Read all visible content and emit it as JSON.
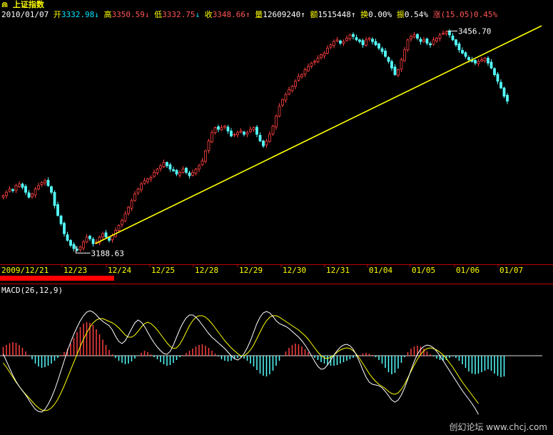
{
  "header": {
    "title": "上证指数",
    "date": "2010/01/07",
    "open_label": "开",
    "open": "3332.98",
    "high_label": "高",
    "high": "3350.59",
    "low_label": "低",
    "low": "3332.75",
    "close_label": "收",
    "close": "3348.66",
    "volume_label": "量",
    "volume": "12609240",
    "amount_label": "额",
    "amount": "1515448",
    "turnover_label": "换",
    "turnover": "0.00%",
    "amplitude_label": "振",
    "amplitude": "0.54%",
    "change_label": "涨",
    "change": "(15.05)0.45%"
  },
  "colors": {
    "up": "#ff4040",
    "down": "#54ffff",
    "trend": "#ffff00",
    "axis": "#c00000",
    "text_yellow": "#ffff00",
    "macd_dif": "#ffffff",
    "macd_dea": "#ffff00"
  },
  "indicator": {
    "label": "MACD(26,12,9)"
  },
  "watermark": "创幻论坛 www.chcj.com",
  "chart_data": [
    {
      "type": "candlestick",
      "title": "上证指数",
      "x_labels": [
        "2009/12/21",
        "12/23",
        "12/24",
        "12/25",
        "12/28",
        "12/29",
        "12/30",
        "12/31",
        "01/04",
        "01/05",
        "01/06",
        "01/07"
      ],
      "annotations": [
        {
          "text": "3188.63",
          "value": 3188.63,
          "kind": "low"
        },
        {
          "text": "3456.70",
          "value": 3456.7,
          "kind": "high"
        }
      ],
      "ylim": [
        3182,
        3470
      ],
      "closes": [
        3258,
        3262,
        3266,
        3264,
        3270,
        3272,
        3268,
        3262,
        3256,
        3260,
        3266,
        3270,
        3274,
        3276,
        3270,
        3262,
        3246,
        3234,
        3224,
        3212,
        3204,
        3198,
        3194,
        3192,
        3196,
        3202,
        3208,
        3206,
        3200,
        3202,
        3208,
        3212,
        3208,
        3204,
        3210,
        3216,
        3222,
        3228,
        3236,
        3244,
        3252,
        3260,
        3266,
        3272,
        3276,
        3278,
        3280,
        3286,
        3290,
        3294,
        3298,
        3294,
        3290,
        3288,
        3284,
        3286,
        3290,
        3286,
        3282,
        3286,
        3290,
        3294,
        3300,
        3312,
        3324,
        3334,
        3340,
        3338,
        3340,
        3342,
        3336,
        3330,
        3332,
        3334,
        3336,
        3332,
        3334,
        3338,
        3340,
        3332,
        3324,
        3318,
        3324,
        3332,
        3342,
        3354,
        3366,
        3374,
        3380,
        3386,
        3390,
        3396,
        3402,
        3404,
        3410,
        3414,
        3418,
        3420,
        3424,
        3428,
        3430,
        3436,
        3440,
        3444,
        3446,
        3442,
        3444,
        3448,
        3452,
        3450,
        3446,
        3444,
        3440,
        3446,
        3448,
        3444,
        3440,
        3436,
        3432,
        3426,
        3420,
        3412,
        3404,
        3410,
        3422,
        3434,
        3446,
        3450,
        3452,
        3448,
        3444,
        3446,
        3442,
        3440,
        3446,
        3448,
        3452,
        3454,
        3456,
        3452,
        3446,
        3440,
        3434,
        3430,
        3426,
        3422,
        3420,
        3418,
        3420,
        3422,
        3424,
        3418,
        3412,
        3404,
        3396,
        3388,
        3378,
        3372
      ],
      "trendline": {
        "start": {
          "index": 23,
          "value": 3188.63
        },
        "end": {
          "index": 168,
          "value": 3463
        }
      }
    },
    {
      "type": "macd",
      "title": "MACD(26,12,9)",
      "params": [
        26,
        12,
        9
      ],
      "ylim": [
        -1.8,
        1.6
      ],
      "hist": [
        0.25,
        0.3,
        0.35,
        0.38,
        0.36,
        0.3,
        0.22,
        0.12,
        0.02,
        -0.1,
        -0.22,
        -0.3,
        -0.34,
        -0.32,
        -0.28,
        -0.22,
        -0.14,
        -0.06,
        0.02,
        0.1,
        0.2,
        0.34,
        0.5,
        0.66,
        0.8,
        0.9,
        0.94,
        0.92,
        0.86,
        0.74,
        0.6,
        0.45,
        0.3,
        0.16,
        0.04,
        -0.06,
        -0.14,
        -0.2,
        -0.24,
        -0.22,
        -0.16,
        -0.08,
        0.0,
        0.08,
        0.14,
        0.1,
        0.04,
        -0.04,
        -0.1,
        -0.18,
        -0.24,
        -0.28,
        -0.26,
        -0.2,
        -0.12,
        -0.04,
        0.02,
        0.08,
        0.14,
        0.2,
        0.26,
        0.3,
        0.32,
        0.28,
        0.22,
        0.14,
        0.06,
        -0.02,
        -0.1,
        -0.14,
        -0.16,
        -0.14,
        -0.1,
        -0.06,
        -0.04,
        -0.08,
        -0.14,
        -0.22,
        -0.3,
        -0.4,
        -0.5,
        -0.56,
        -0.58,
        -0.52,
        -0.42,
        -0.28,
        -0.14,
        0.0,
        0.12,
        0.22,
        0.3,
        0.34,
        0.32,
        0.26,
        0.18,
        0.1,
        0.02,
        -0.06,
        -0.12,
        -0.18,
        -0.22,
        -0.26,
        -0.28,
        -0.28,
        -0.26,
        -0.22,
        -0.18,
        -0.14,
        -0.1,
        -0.06,
        -0.02,
        0.02,
        0.06,
        0.08,
        0.06,
        0.02,
        -0.04,
        -0.12,
        -0.22,
        -0.34,
        -0.46,
        -0.52,
        -0.48,
        -0.36,
        -0.2,
        -0.04,
        0.1,
        0.2,
        0.26,
        0.28,
        0.26,
        0.2,
        0.12,
        0.04,
        -0.02,
        -0.08,
        -0.12,
        -0.14,
        -0.12,
        -0.06,
        -0.02,
        -0.06,
        -0.14,
        -0.24,
        -0.34,
        -0.44,
        -0.5,
        -0.52,
        -0.5,
        -0.46,
        -0.42,
        -0.38,
        -0.42,
        -0.5,
        -0.56,
        -0.6,
        -0.58
      ],
      "dif": [
        0.05,
        -0.15,
        -0.35,
        -0.55,
        -0.72,
        -0.86,
        -0.98,
        -1.1,
        -1.24,
        -1.38,
        -1.5,
        -1.56,
        -1.58,
        -1.5,
        -1.36,
        -1.18,
        -0.96,
        -0.7,
        -0.42,
        -0.14,
        0.14,
        0.38,
        0.6,
        0.8,
        0.98,
        1.12,
        1.22,
        1.26,
        1.22,
        1.14,
        1.04,
        0.96,
        0.9,
        0.84,
        0.72,
        0.54,
        0.4,
        0.34,
        0.42,
        0.58,
        0.76,
        0.92,
        1.0,
        0.94,
        0.82,
        0.66,
        0.5,
        0.36,
        0.24,
        0.14,
        0.06,
        0.04,
        0.12,
        0.3,
        0.52,
        0.74,
        0.92,
        1.06,
        1.14,
        1.14,
        1.08,
        0.98,
        0.86,
        0.74,
        0.62,
        0.52,
        0.44,
        0.36,
        0.28,
        0.2,
        0.1,
        0.0,
        -0.08,
        -0.12,
        -0.06,
        0.06,
        0.22,
        0.42,
        0.66,
        0.9,
        1.08,
        1.2,
        1.24,
        1.2,
        1.1,
        0.98,
        0.9,
        0.86,
        0.82,
        0.76,
        0.68,
        0.6,
        0.52,
        0.42,
        0.3,
        0.16,
        0.0,
        -0.16,
        -0.3,
        -0.38,
        -0.36,
        -0.26,
        -0.12,
        0.02,
        0.14,
        0.24,
        0.3,
        0.32,
        0.28,
        0.18,
        0.02,
        -0.18,
        -0.4,
        -0.6,
        -0.74,
        -0.8,
        -0.82,
        -0.84,
        -0.9,
        -1.0,
        -1.12,
        -1.24,
        -1.3,
        -1.24,
        -1.1,
        -0.9,
        -0.66,
        -0.4,
        -0.16,
        0.04,
        0.18,
        0.26,
        0.3,
        0.28,
        0.22,
        0.12,
        0.0,
        -0.14,
        -0.28,
        -0.42,
        -0.56,
        -0.7,
        -0.84,
        -0.98,
        -1.1,
        -1.22,
        -1.34,
        -1.48,
        -1.64
      ],
      "dea": [
        -0.2,
        -0.32,
        -0.46,
        -0.6,
        -0.74,
        -0.86,
        -0.98,
        -1.08,
        -1.18,
        -1.28,
        -1.38,
        -1.46,
        -1.52,
        -1.54,
        -1.52,
        -1.46,
        -1.36,
        -1.22,
        -1.04,
        -0.84,
        -0.62,
        -0.4,
        -0.18,
        0.04,
        0.26,
        0.46,
        0.64,
        0.8,
        0.92,
        1.0,
        1.04,
        1.04,
        1.0,
        0.96,
        0.92,
        0.86,
        0.78,
        0.68,
        0.58,
        0.52,
        0.52,
        0.58,
        0.68,
        0.8,
        0.9,
        0.94,
        0.9,
        0.82,
        0.72,
        0.6,
        0.48,
        0.36,
        0.26,
        0.2,
        0.22,
        0.32,
        0.48,
        0.66,
        0.84,
        0.98,
        1.08,
        1.12,
        1.12,
        1.08,
        1.0,
        0.9,
        0.78,
        0.66,
        0.54,
        0.42,
        0.32,
        0.22,
        0.14,
        0.06,
        0.0,
        0.0,
        0.06,
        0.16,
        0.3,
        0.48,
        0.66,
        0.84,
        0.98,
        1.08,
        1.12,
        1.12,
        1.08,
        1.02,
        0.96,
        0.9,
        0.84,
        0.78,
        0.72,
        0.64,
        0.56,
        0.46,
        0.34,
        0.22,
        0.1,
        0.0,
        -0.06,
        -0.08,
        -0.04,
        0.02,
        0.1,
        0.16,
        0.2,
        0.22,
        0.2,
        0.14,
        0.04,
        -0.08,
        -0.22,
        -0.36,
        -0.5,
        -0.62,
        -0.72,
        -0.8,
        -0.86,
        -0.92,
        -1.0,
        -1.06,
        -1.08,
        -1.04,
        -0.94,
        -0.8,
        -0.62,
        -0.44,
        -0.26,
        -0.1,
        0.04,
        0.14,
        0.2,
        0.22,
        0.2,
        0.16,
        0.1,
        0.02,
        -0.08,
        -0.2,
        -0.32,
        -0.46,
        -0.6,
        -0.74,
        -0.86,
        -0.98,
        -1.1,
        -1.22,
        -1.34
      ]
    }
  ]
}
